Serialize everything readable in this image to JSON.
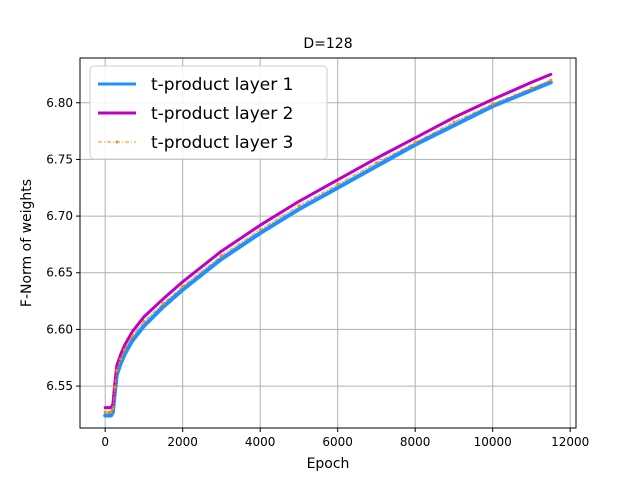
{
  "chart_data": {
    "type": "line",
    "title": "D=128",
    "xlabel": "Epoch",
    "ylabel": "F-Norm of weights",
    "xlim": [
      -650,
      12150
    ],
    "ylim": [
      6.513,
      6.8395
    ],
    "xticks": [
      0,
      2000,
      4000,
      6000,
      8000,
      10000,
      12000
    ],
    "xtick_labels": [
      "0",
      "2000",
      "4000",
      "6000",
      "8000",
      "10000",
      "12000"
    ],
    "yticks": [
      6.55,
      6.6,
      6.65,
      6.7,
      6.75,
      6.8
    ],
    "ytick_labels": [
      "6.55",
      "6.60",
      "6.65",
      "6.70",
      "6.75",
      "6.80"
    ],
    "grid": true,
    "legend_position": "top-left",
    "series": [
      {
        "name": "t-product layer 1",
        "color": "#1e90ff",
        "style": "solid",
        "x": [
          0,
          100,
          150,
          200,
          250,
          300,
          400,
          500,
          700,
          1000,
          1500,
          2000,
          3000,
          4000,
          5000,
          6000,
          7000,
          8000,
          9000,
          10000,
          11000,
          11500
        ],
        "y": [
          6.524,
          6.524,
          6.524,
          6.527,
          6.545,
          6.56,
          6.57,
          6.578,
          6.59,
          6.603,
          6.62,
          6.635,
          6.662,
          6.685,
          6.706,
          6.725,
          6.744,
          6.763,
          6.78,
          6.797,
          6.811,
          6.818
        ]
      },
      {
        "name": "t-product layer 2",
        "color": "#c000c0",
        "style": "solid",
        "x": [
          0,
          100,
          150,
          200,
          250,
          300,
          400,
          500,
          700,
          1000,
          1500,
          2000,
          3000,
          4000,
          5000,
          6000,
          7000,
          8000,
          9000,
          10000,
          11000,
          11500
        ],
        "y": [
          6.531,
          6.531,
          6.531,
          6.534,
          6.553,
          6.568,
          6.578,
          6.586,
          6.598,
          6.611,
          6.627,
          6.642,
          6.669,
          6.692,
          6.713,
          6.732,
          6.751,
          6.769,
          6.787,
          6.803,
          6.818,
          6.825
        ]
      },
      {
        "name": "t-product layer 3",
        "color": "#ff8c00",
        "style": "dashdot-marker",
        "x": [
          0,
          100,
          150,
          200,
          250,
          300,
          400,
          500,
          700,
          1000,
          1500,
          2000,
          3000,
          4000,
          5000,
          6000,
          7000,
          8000,
          9000,
          10000,
          11000,
          11500
        ],
        "y": [
          6.527,
          6.527,
          6.527,
          6.53,
          6.549,
          6.564,
          6.574,
          6.582,
          6.594,
          6.607,
          6.623,
          6.638,
          6.665,
          6.688,
          6.709,
          6.728,
          6.747,
          6.765,
          6.783,
          6.799,
          6.813,
          6.82
        ]
      }
    ]
  }
}
